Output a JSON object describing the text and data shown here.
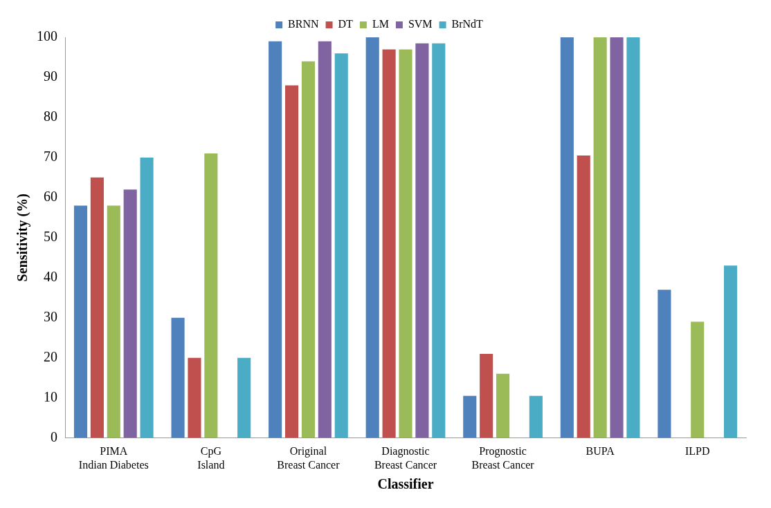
{
  "chart_data": {
    "type": "bar",
    "xlabel": "Classifier",
    "ylabel": "Sensitivity (%)",
    "categories": [
      "PIMA Indian Diabetes",
      "CpG Island",
      "Original Breast Cancer",
      "Diagnostic Breast Cancer",
      "Prognostic Breast Cancer",
      "BUPA",
      "ILPD"
    ],
    "series": [
      {
        "name": "BRNN",
        "color": "#4f81bd",
        "values": [
          58,
          30,
          99,
          100,
          10.5,
          100,
          37
        ]
      },
      {
        "name": "DT",
        "color": "#c0504d",
        "values": [
          65,
          20,
          88,
          97,
          21,
          70.5,
          0
        ]
      },
      {
        "name": "LM",
        "color": "#9bbb59",
        "values": [
          58,
          71,
          94,
          97,
          16,
          100,
          29
        ]
      },
      {
        "name": "SVM",
        "color": "#8064a2",
        "values": [
          62,
          0,
          99,
          98.5,
          0,
          100,
          0
        ]
      },
      {
        "name": "BrNdT",
        "color": "#4bacc6",
        "values": [
          70,
          20,
          96,
          98.5,
          10.5,
          100,
          43
        ]
      }
    ],
    "ylim": [
      0,
      100
    ],
    "yticks": [
      0,
      10,
      20,
      30,
      40,
      50,
      60,
      70,
      80,
      90,
      100
    ],
    "grid": false,
    "legend": "top"
  }
}
